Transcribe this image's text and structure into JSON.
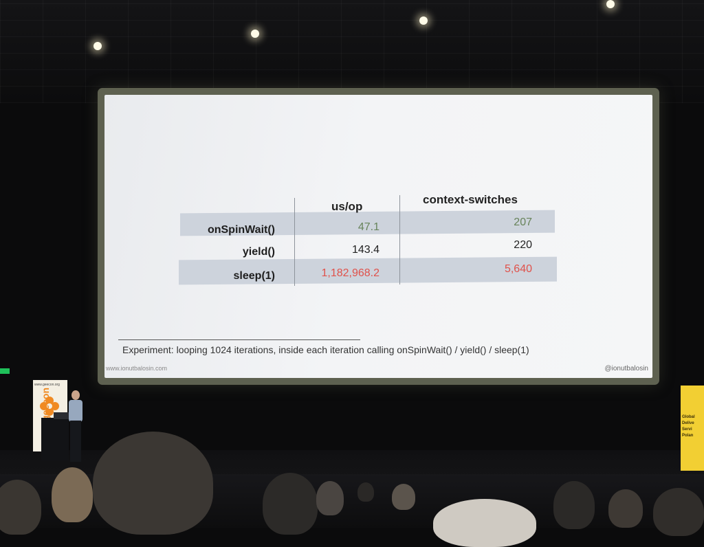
{
  "slide": {
    "columns": {
      "us_op": "us/op",
      "context_switches": "context-switches"
    },
    "rows": [
      {
        "label": "onSpinWait()",
        "us_op": "47.1",
        "context_switches": "207",
        "highlight": "green"
      },
      {
        "label": "yield()",
        "us_op": "143.4",
        "context_switches": "220",
        "highlight": "none"
      },
      {
        "label": "sleep(1)",
        "us_op": "1,182,968.2",
        "context_switches": "5,640",
        "highlight": "red"
      }
    ],
    "footnote": "Experiment: looping 1024 iterations, inside each iteration calling onSpinWait() / yield() / sleep(1)",
    "url": "www.ionutbalosin.com",
    "handle": "@ionutbalosin"
  },
  "venue": {
    "banner_site": "www.geecon.org",
    "banner_text": "geecon",
    "right_sign_text": "Global\nDelive\nServi\nPolan"
  },
  "colors": {
    "band": "#cdd3dc",
    "green_value": "#67835a",
    "red_value": "#e0514a",
    "screen_border": "#5e6150",
    "banner_orange": "#f08a22",
    "sign_yellow": "#f2cf33"
  }
}
